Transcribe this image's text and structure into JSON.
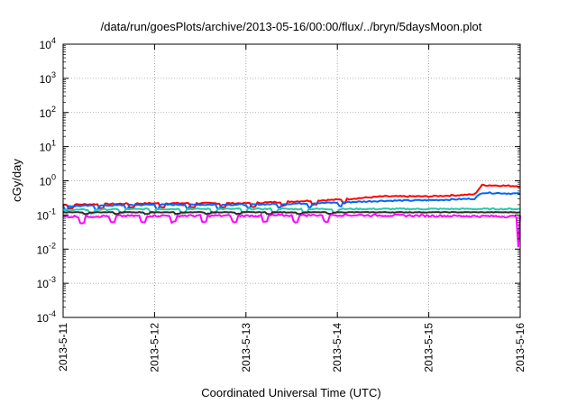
{
  "chart_data": {
    "type": "line",
    "title": "/data/run/goesPlots/archive/2013-05-16/00:00/flux/../bryn/5daysMoon.plot",
    "xlabel": "Coordinated Universal Time (UTC)",
    "ylabel": "cGy/day",
    "y_scale": "log",
    "ylim": [
      0.0001,
      10000
    ],
    "y_ticks": [
      {
        "value": 0.0001,
        "base": "10",
        "exp": "-4"
      },
      {
        "value": 0.001,
        "base": "10",
        "exp": "-3"
      },
      {
        "value": 0.01,
        "base": "10",
        "exp": "-2"
      },
      {
        "value": 0.1,
        "base": "10",
        "exp": "-1"
      },
      {
        "value": 1,
        "base": "10",
        "exp": "0"
      },
      {
        "value": 10,
        "base": "10",
        "exp": "1"
      },
      {
        "value": 100,
        "base": "10",
        "exp": "2"
      },
      {
        "value": 1000,
        "base": "10",
        "exp": "3"
      },
      {
        "value": 10000,
        "base": "10",
        "exp": "4"
      }
    ],
    "x_ticks": [
      "2013-5-11",
      "2013-5-12",
      "2013-5-13",
      "2013-5-14",
      "2013-5-15",
      "2013-5-16"
    ],
    "xlim": [
      "2013-5-11",
      "2013-5-16"
    ],
    "grid": true,
    "series": [
      {
        "color": "#ff0000",
        "points": [
          [
            "2013-5-11",
            0.2
          ],
          [
            "2013-5-12",
            0.22
          ],
          [
            "2013-5-13",
            0.22
          ],
          [
            "2013-5-14",
            0.28
          ],
          [
            "2013-5-14 12:00",
            0.35
          ],
          [
            "2013-5-15",
            0.35
          ],
          [
            "2013-5-15 12:00",
            0.4
          ],
          [
            "2013-5-15 14:00",
            0.75
          ],
          [
            "2013-5-16",
            0.7
          ]
        ]
      },
      {
        "color": "#0066ff",
        "points": [
          [
            "2013-5-11",
            0.18
          ],
          [
            "2013-5-12",
            0.2
          ],
          [
            "2013-5-13",
            0.2
          ],
          [
            "2013-5-14",
            0.23
          ],
          [
            "2013-5-14 12:00",
            0.26
          ],
          [
            "2013-5-15",
            0.27
          ],
          [
            "2013-5-15 12:00",
            0.3
          ],
          [
            "2013-5-15 14:00",
            0.45
          ],
          [
            "2013-5-16",
            0.42
          ]
        ]
      },
      {
        "color": "#22ccaa",
        "points": [
          [
            "2013-5-11",
            0.14
          ],
          [
            "2013-5-12",
            0.15
          ],
          [
            "2013-5-13",
            0.15
          ],
          [
            "2013-5-14",
            0.15
          ],
          [
            "2013-5-15",
            0.15
          ],
          [
            "2013-5-16",
            0.15
          ]
        ]
      },
      {
        "color": "#2a2a2a",
        "points": [
          [
            "2013-5-11",
            0.12
          ],
          [
            "2013-5-12",
            0.12
          ],
          [
            "2013-5-13",
            0.12
          ],
          [
            "2013-5-14",
            0.12
          ],
          [
            "2013-5-15",
            0.12
          ],
          [
            "2013-5-16",
            0.12
          ]
        ]
      },
      {
        "color": "#ff00ff",
        "points": [
          [
            "2013-5-11",
            0.09
          ],
          [
            "2013-5-12",
            0.095
          ],
          [
            "2013-5-13",
            0.095
          ],
          [
            "2013-5-14",
            0.1
          ],
          [
            "2013-5-15",
            0.095
          ],
          [
            "2013-5-16",
            0.09
          ]
        ]
      }
    ]
  }
}
